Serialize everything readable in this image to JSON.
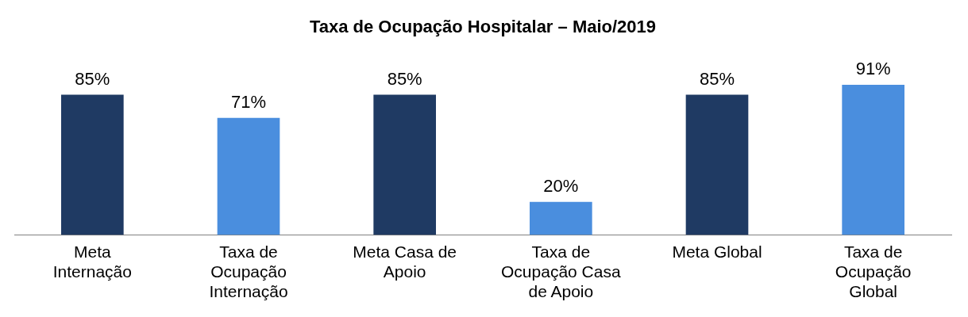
{
  "chart_data": {
    "type": "bar",
    "title": "Taxa de Ocupação Hospitalar – Maio/2019",
    "categories": [
      "Meta Internação",
      "Taxa de Ocupação Internação",
      "Meta Casa de Apoio",
      "Taxa de Ocupação Casa de Apoio",
      "Meta Global",
      "Taxa de Ocupação Global"
    ],
    "values": [
      85,
      71,
      85,
      20,
      85,
      91
    ],
    "colors": [
      "#1f3a63",
      "#4a8ede",
      "#1f3a63",
      "#4a8ede",
      "#1f3a63",
      "#4a8ede"
    ],
    "value_labels": [
      "85%",
      "71%",
      "85%",
      "20%",
      "85%",
      "91%"
    ],
    "grid": false,
    "legend": false
  }
}
